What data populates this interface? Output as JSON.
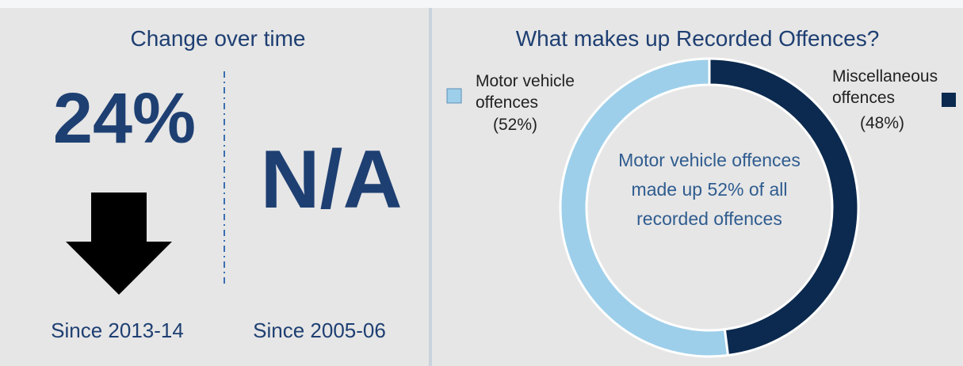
{
  "change": {
    "title": "Change over time",
    "items": [
      {
        "value": "24%",
        "label": "Since 2013-14"
      },
      {
        "value": "N/A",
        "label": "Since 2005-06"
      }
    ]
  },
  "chart_data": {
    "type": "pie",
    "title": "What makes up Recorded Offences?",
    "categories": [
      "Motor vehicle offences",
      "Miscellaneous offences"
    ],
    "values": [
      52,
      48
    ],
    "value_labels": [
      "(52%)",
      "(48%)"
    ],
    "colors": [
      "#9dcfea",
      "#0c2a4f"
    ],
    "hole": true,
    "direction": "counterclockwise",
    "center_text": "Motor vehicle offences made up 52% of all recorded offences"
  }
}
